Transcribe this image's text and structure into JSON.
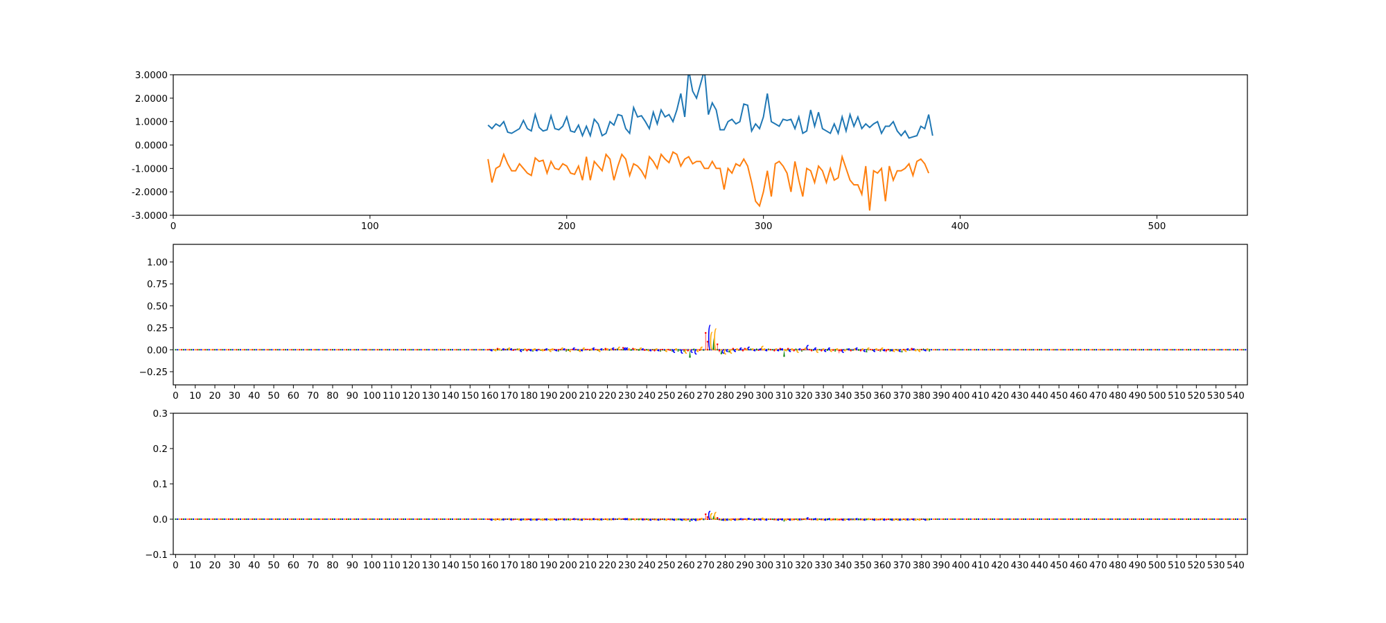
{
  "colors": {
    "series1": "#1f77b4",
    "series2": "#ff7f0e",
    "A": "#008000",
    "C": "#0000ff",
    "G": "#ffa500",
    "T": "#ff0000"
  },
  "chart_data": [
    {
      "type": "line",
      "title": "",
      "xlim": [
        0,
        546
      ],
      "ylim": [
        -3,
        3
      ],
      "xticks": [
        "0",
        "100",
        "200",
        "300",
        "400",
        "500"
      ],
      "xtick_values": [
        0,
        100,
        200,
        300,
        400,
        500
      ],
      "yticks": [
        "-3.0000",
        "-2.0000",
        "-1.0000",
        "0.0000",
        "1.0000",
        "2.0000",
        "3.0000"
      ],
      "ytick_values": [
        -3,
        -2,
        -1,
        0,
        1,
        2,
        3
      ],
      "x_start": 160,
      "x_step": 2,
      "series": [
        {
          "name": "series1",
          "values": [
            0.85,
            0.7,
            0.9,
            0.8,
            1.0,
            0.55,
            0.5,
            0.6,
            0.7,
            1.05,
            0.7,
            0.6,
            1.3,
            0.75,
            0.6,
            0.65,
            1.25,
            0.7,
            0.65,
            0.8,
            1.2,
            0.6,
            0.55,
            0.85,
            0.4,
            0.8,
            0.4,
            1.1,
            0.9,
            0.4,
            0.5,
            1.0,
            0.85,
            1.3,
            1.25,
            0.7,
            0.5,
            1.6,
            1.2,
            1.25,
            1.0,
            0.7,
            1.4,
            0.9,
            1.5,
            1.2,
            1.3,
            1.0,
            1.5,
            2.2,
            1.2,
            3.2,
            2.3,
            2.0,
            2.6,
            3.2,
            1.3,
            1.8,
            1.5,
            0.65,
            0.65,
            1.0,
            1.1,
            0.9,
            1.0,
            1.75,
            1.7,
            0.6,
            0.9,
            0.7,
            1.2,
            2.2,
            1.0,
            0.9,
            0.8,
            1.1,
            1.05,
            1.1,
            0.7,
            1.2,
            0.5,
            0.6,
            1.5,
            0.8,
            1.4,
            0.7,
            0.6,
            0.5,
            0.9,
            0.5,
            1.2,
            0.6,
            1.3,
            0.8,
            1.2,
            0.7,
            0.9,
            0.75,
            0.9,
            1.0,
            0.5,
            0.8,
            0.8,
            1.0,
            0.6,
            0.4,
            0.6,
            0.3,
            0.35,
            0.4,
            0.8,
            0.7,
            1.3,
            0.4
          ]
        },
        {
          "name": "series2",
          "values": [
            -0.6,
            -1.6,
            -1.0,
            -0.9,
            -0.4,
            -0.8,
            -1.1,
            -1.1,
            -0.8,
            -1.0,
            -1.2,
            -1.3,
            -0.55,
            -0.7,
            -0.65,
            -1.2,
            -0.7,
            -1.0,
            -1.05,
            -0.8,
            -0.9,
            -1.2,
            -1.25,
            -0.9,
            -1.5,
            -0.5,
            -1.5,
            -0.7,
            -0.9,
            -1.1,
            -0.4,
            -0.6,
            -1.5,
            -0.9,
            -0.4,
            -0.6,
            -1.3,
            -0.8,
            -0.9,
            -1.1,
            -1.4,
            -0.5,
            -0.7,
            -1.0,
            -0.4,
            -0.6,
            -0.75,
            -0.3,
            -0.4,
            -0.9,
            -0.6,
            -0.5,
            -0.8,
            -0.7,
            -0.7,
            -1.0,
            -1.0,
            -0.7,
            -1.0,
            -1.0,
            -1.9,
            -1.0,
            -1.2,
            -0.8,
            -0.9,
            -0.6,
            -0.9,
            -1.6,
            -2.4,
            -2.6,
            -2.0,
            -1.1,
            -2.2,
            -0.8,
            -0.7,
            -0.9,
            -1.2,
            -2.0,
            -0.7,
            -1.5,
            -2.2,
            -1.0,
            -1.1,
            -1.6,
            -0.9,
            -1.1,
            -1.6,
            -1.0,
            -1.5,
            -1.4,
            -0.5,
            -1.0,
            -1.5,
            -1.7,
            -1.7,
            -2.1,
            -0.9,
            -2.8,
            -1.1,
            -1.2,
            -1.0,
            -2.4,
            -0.9,
            -1.5,
            -1.1,
            -1.1,
            -1.0,
            -0.8,
            -1.3,
            -0.7,
            -0.6,
            -0.8,
            -1.2
          ]
        }
      ]
    },
    {
      "type": "bar",
      "subtype": "sequence-logo",
      "xlim": [
        -1.2,
        546
      ],
      "ylim": [
        -0.4,
        1.2
      ],
      "yticks": [
        "−0.25",
        "0.00",
        "0.25",
        "0.50",
        "0.75",
        "1.00"
      ],
      "ytick_values": [
        -0.25,
        0,
        0.25,
        0.5,
        0.75,
        1.0
      ],
      "x_start": 160,
      "sequence": "TCAGTGACTAGCTTAGCAGTTCAGCTAGTCAGGTCATGCAAGTCTAGCGTTAGCTAGCATGAGCTAGATCCGATGAAGCTAGCATGCATAGTTACGAACAGTACACGTGATTCGAGTTACGCAGTCGACTTGCAGCATCGGCATATGCTCAGTCGTAGCATGCTTACGATGCACGTAGTTCGACTAGCATGCAGTACGTAGCTTACGAGCATGCATCGAGTACG",
      "values": [
        0.01,
        -0.01,
        0.01,
        0,
        0.02,
        0.01,
        -0.01,
        0.01,
        0.01,
        0.02,
        0.02,
        0.01,
        -0.01,
        0.01,
        0.02,
        0.01,
        -0.02,
        -0.01,
        0.01,
        -0.02,
        0.01,
        -0.01,
        -0.02,
        0.01,
        -0.01,
        0.01,
        0,
        -0.01,
        -0.01,
        0.01,
        0.01,
        -0.02,
        0.01,
        0.01,
        -0.01,
        -0.02,
        0.01,
        0.02,
        0.01,
        -0.02,
        -0.01,
        -0.02,
        0.01,
        0.02,
        0.01,
        -0.01,
        -0.02,
        -0.01,
        0.02,
        0.01,
        0.01,
        -0.01,
        0.01,
        0.02,
        0.01,
        -0.01,
        -0.02,
        0.01,
        0.01,
        0.02,
        0.01,
        -0.01,
        0.01,
        0.02,
        0.01,
        0.02,
        0.03,
        0.01,
        0.03,
        0.02,
        0.02,
        0.01,
        -0.01,
        0.02,
        0.01,
        0.01,
        -0.01,
        0.02,
        0.01,
        -0.01,
        0.01,
        -0.01,
        -0.01,
        0.01,
        -0.02,
        0.01,
        -0.01,
        -0.02,
        0.01,
        -0.01,
        -0.02,
        0.01,
        -0.01,
        -0.02,
        -0.03,
        0.01,
        -0.02,
        -0.01,
        -0.04,
        -0.02,
        -0.04,
        -0.02,
        -0.09,
        -0.03,
        0.02,
        -0.05,
        -0.02,
        -0.01,
        0.03,
        -0.01,
        0.2,
        0.1,
        0.28,
        0.2,
        0.14,
        0.24,
        0.07,
        -0.03,
        -0.05,
        -0.04,
        -0.05,
        -0.02,
        -0.03,
        -0.04,
        0.02,
        -0.02,
        0.01,
        -0.01,
        0.02,
        -0.02,
        0.02,
        0.01,
        0.03,
        0.02,
        0.01,
        -0.01,
        0.02,
        -0.01,
        0.01,
        0.04,
        0.01,
        -0.01,
        0.02,
        0.01,
        0.01,
        -0.02,
        0.01,
        -0.01,
        0.02,
        0.01,
        -0.08,
        -0.01,
        0.02,
        -0.02,
        0.01,
        -0.02,
        0.02,
        -0.03,
        0.01,
        -0.02,
        0.01,
        0.02,
        0.05,
        0.01,
        -0.02,
        -0.01,
        0.02,
        -0.03,
        0.01,
        -0.02,
        0.01,
        -0.02,
        -0.01,
        0.02,
        -0.02,
        -0.01,
        -0.02,
        0.01,
        -0.04,
        -0.02,
        -0.03,
        -0.01,
        0.02,
        0.01,
        -0.02,
        -0.01,
        0.01,
        0.02,
        -0.01,
        -0.02,
        0.01,
        -0.02,
        -0.03,
        0.02,
        0.01,
        -0.01,
        -0.02,
        0.01,
        -0.01,
        -0.02,
        0.02,
        -0.01,
        -0.03,
        0.01,
        -0.02,
        -0.01,
        -0.02,
        0.01,
        -0.01,
        -0.02,
        -0.03,
        0.01,
        -0.02,
        0.01,
        -0.01,
        0.02,
        0.01,
        -0.01,
        0.01,
        -0.02,
        0.01,
        0.02,
        -0.01,
        0.01,
        -0.02
      ]
    },
    {
      "type": "bar",
      "subtype": "sequence-logo",
      "xlim": [
        -1.2,
        546
      ],
      "ylim": [
        -0.1,
        0.3
      ],
      "yticks": [
        "−0.1",
        "0.0",
        "0.1",
        "0.2",
        "0.3"
      ],
      "ytick_values": [
        -0.1,
        0,
        0.1,
        0.2,
        0.3
      ],
      "x_start": 160,
      "value_scale_of_panel2": 0.08
    }
  ],
  "logo_xticks": [
    "0",
    "10",
    "20",
    "30",
    "40",
    "50",
    "60",
    "70",
    "80",
    "90",
    "100",
    "110",
    "120",
    "130",
    "140",
    "150",
    "160",
    "170",
    "180",
    "190",
    "200",
    "210",
    "220",
    "230",
    "240",
    "250",
    "260",
    "270",
    "280",
    "290",
    "300",
    "310",
    "320",
    "330",
    "340",
    "350",
    "360",
    "370",
    "380",
    "390",
    "400",
    "410",
    "420",
    "430",
    "440",
    "450",
    "460",
    "470",
    "480",
    "490",
    "500",
    "510",
    "520",
    "530",
    "540"
  ]
}
